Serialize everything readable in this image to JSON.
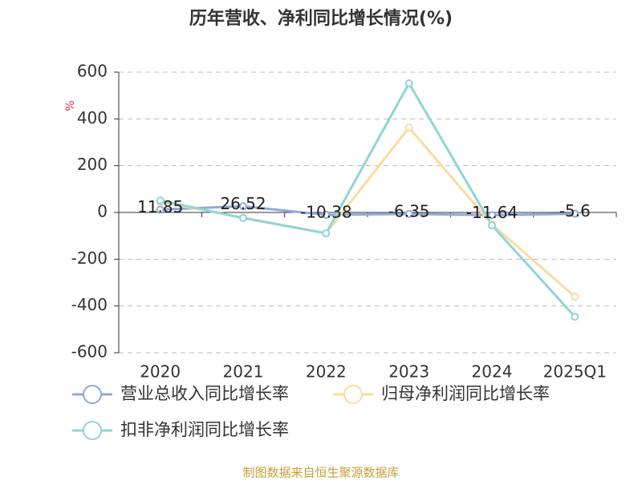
{
  "chart_data": {
    "type": "line",
    "title": "历年营收、净利同比增长情况(%)",
    "y_label": "%",
    "source": "制图数据来自恒生聚源数据库",
    "categories": [
      "2020",
      "2021",
      "2022",
      "2023",
      "2024",
      "2025Q1"
    ],
    "series": [
      {
        "name": "营业总收入同比增长率",
        "color": "#8fa9d9",
        "values": [
          11.85,
          26.52,
          -10.38,
          -6.35,
          -11.64,
          -5.6
        ],
        "show_labels": true
      },
      {
        "name": "归母净利润同比增长率",
        "color": "#f9dc9e",
        "values": [
          45,
          -22,
          -89,
          363,
          -51,
          -360
        ],
        "show_labels": false
      },
      {
        "name": "扣非净利润同比增长率",
        "color": "#8fd5d5",
        "values": [
          51,
          -24,
          -89,
          552,
          -55,
          -446
        ],
        "show_labels": false
      }
    ],
    "ylim": [
      -600,
      600
    ],
    "yticks": [
      -600,
      -400,
      -200,
      0,
      200,
      400,
      600
    ],
    "grid": true
  }
}
